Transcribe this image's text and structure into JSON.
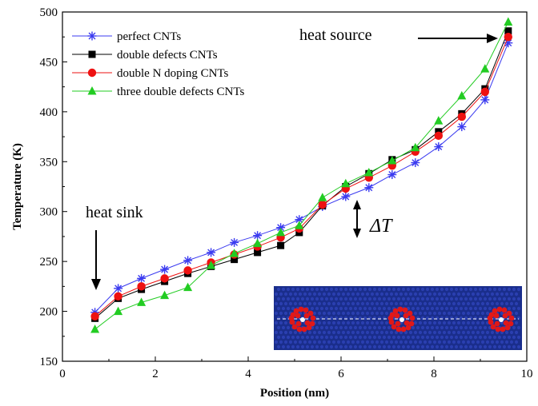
{
  "chart_data": {
    "type": "line",
    "title": "",
    "xlabel": "Position (nm)",
    "ylabel": "Temperature (K)",
    "xlim": [
      0,
      10
    ],
    "ylim": [
      150,
      500
    ],
    "xticks": [
      0,
      2,
      4,
      6,
      8,
      10
    ],
    "yticks": [
      150,
      200,
      250,
      300,
      350,
      400,
      450,
      500
    ],
    "grid": false,
    "legend_position": "top-left",
    "series": [
      {
        "name": "perfect CNTs",
        "color": "#3b3bf0",
        "marker": "star",
        "x": [
          0.7,
          1.2,
          1.7,
          2.2,
          2.7,
          3.2,
          3.7,
          4.2,
          4.7,
          5.1,
          5.6,
          6.1,
          6.6,
          7.1,
          7.6,
          8.1,
          8.6,
          9.1,
          9.6
        ],
        "y": [
          199,
          223,
          233,
          242,
          251,
          259,
          269,
          276,
          284,
          292,
          305,
          315,
          324,
          337,
          349,
          365,
          385,
          412,
          469
        ]
      },
      {
        "name": "double defects CNTs",
        "color": "#000000",
        "marker": "square",
        "x": [
          0.7,
          1.2,
          1.7,
          2.2,
          2.7,
          3.2,
          3.7,
          4.2,
          4.7,
          5.1,
          5.6,
          6.1,
          6.6,
          7.1,
          7.6,
          8.1,
          8.6,
          9.1,
          9.6
        ],
        "y": [
          193,
          213,
          222,
          230,
          238,
          245,
          252,
          259,
          266,
          279,
          306,
          325,
          338,
          352,
          362,
          380,
          398,
          423,
          481
        ]
      },
      {
        "name": "double N doping CNTs",
        "color": "#ee1111",
        "marker": "circle",
        "x": [
          0.7,
          1.2,
          1.7,
          2.2,
          2.7,
          3.2,
          3.7,
          4.2,
          4.7,
          5.1,
          5.6,
          6.1,
          6.6,
          7.1,
          7.6,
          8.1,
          8.6,
          9.1,
          9.6
        ],
        "y": [
          195,
          215,
          225,
          233,
          241,
          249,
          257,
          265,
          274,
          283,
          307,
          323,
          334,
          346,
          360,
          376,
          395,
          420,
          475
        ]
      },
      {
        "name": "three double defects CNTs",
        "color": "#22cc22",
        "marker": "triangle",
        "x": [
          0.7,
          1.2,
          1.7,
          2.2,
          2.7,
          3.2,
          3.7,
          4.2,
          4.7,
          5.1,
          5.6,
          6.1,
          6.6,
          7.1,
          7.6,
          8.1,
          8.6,
          9.1,
          9.6
        ],
        "y": [
          182,
          200,
          209,
          216,
          224,
          246,
          258,
          268,
          279,
          286,
          314,
          328,
          339,
          351,
          364,
          391,
          416,
          443,
          490
        ]
      }
    ],
    "annotations": {
      "heat_source": "heat source",
      "heat_sink": "heat sink",
      "delta_t": "ΔT"
    },
    "inset": {
      "description_colors": {
        "background": "#1a2e8c",
        "atom": "#2a3fb0",
        "defect": "#e01818",
        "line": "#ffffff"
      }
    }
  }
}
